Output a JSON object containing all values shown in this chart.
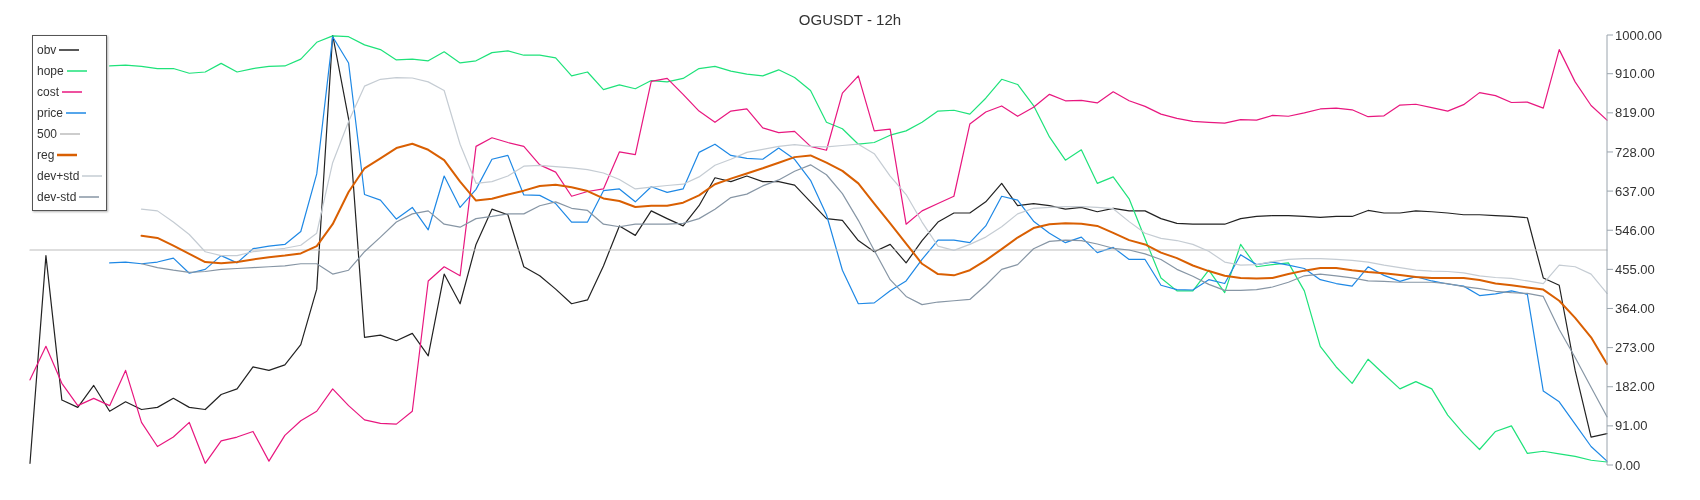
{
  "chart_data": {
    "type": "line",
    "title": "OGUSDT - 12h",
    "categories": [
      null,
      null,
      null,
      null,
      null,
      null,
      null,
      null,
      null,
      null,
      null,
      null,
      null,
      null,
      null,
      null,
      null,
      null,
      null,
      null,
      null,
      null,
      null,
      null,
      null,
      null,
      null,
      null,
      null,
      null,
      null,
      null,
      null,
      null,
      null,
      null,
      null,
      null,
      null,
      null,
      null,
      null,
      null,
      null,
      null,
      null,
      null,
      null,
      null,
      null,
      null,
      null,
      null,
      null,
      null,
      null,
      null,
      null,
      null,
      null,
      null,
      null,
      null,
      null,
      null,
      null,
      null,
      null,
      null,
      null,
      null,
      null,
      null,
      null,
      null,
      null,
      null,
      null,
      null,
      null,
      null,
      null,
      null,
      null,
      null,
      null,
      null,
      null,
      null,
      null,
      null,
      null,
      null,
      null,
      null,
      null,
      null,
      null,
      null,
      null
    ],
    "series": [
      {
        "name": "obv",
        "color": "#222222",
        "values": [
          4,
          487,
          151,
          134,
          185,
          125,
          147,
          129,
          134,
          155,
          134,
          129,
          164,
          177,
          228,
          220,
          233,
          280,
          409,
          1000,
          805,
          297,
          302,
          289,
          306,
          254,
          444,
          375,
          513,
          595,
          582,
          461,
          440,
          409,
          375,
          384,
          463,
          556,
          534,
          591,
          573,
          556,
          603,
          668,
          659,
          672,
          659,
          659,
          651,
          612,
          573,
          569,
          522,
          496,
          513,
          470,
          522,
          565,
          586,
          586,
          612,
          655,
          603,
          608,
          603,
          595,
          599,
          589,
          597,
          591,
          591,
          573,
          562,
          560,
          560,
          560,
          573,
          578,
          580,
          580,
          578,
          576,
          578,
          578,
          592,
          586,
          586,
          591,
          589,
          586,
          582,
          582,
          580,
          578,
          575,
          435,
          418,
          220,
          65,
          73
        ]
      },
      {
        "name": "hope",
        "color": "#1ee27a",
        "values": [
          null,
          null,
          null,
          null,
          null,
          928,
          930,
          927,
          922,
          922,
          911,
          914,
          934,
          914,
          922,
          927,
          928,
          944,
          983,
          998,
          996,
          977,
          966,
          942,
          944,
          940,
          961,
          935,
          940,
          959,
          963,
          953,
          953,
          947,
          905,
          914,
          873,
          884,
          875,
          894,
          891,
          899,
          922,
          927,
          916,
          909,
          905,
          919,
          901,
          871,
          797,
          782,
          746,
          750,
          767,
          777,
          797,
          823,
          825,
          816,
          853,
          897,
          885,
          836,
          763,
          709,
          733,
          655,
          670,
          619,
          526,
          435,
          405,
          405,
          453,
          401,
          513,
          461,
          466,
          470,
          405,
          276,
          228,
          190,
          246,
          211,
          177,
          194,
          177,
          116,
          73,
          36,
          78,
          91,
          27,
          32,
          26,
          20,
          11,
          7
        ]
      },
      {
        "name": "cost",
        "color": "#e8177f",
        "values": [
          198,
          276,
          190,
          138,
          155,
          138,
          220,
          99,
          43,
          65,
          99,
          4,
          56,
          65,
          78,
          9,
          69,
          103,
          125,
          177,
          138,
          105,
          97,
          95,
          125,
          428,
          461,
          440,
          741,
          761,
          750,
          741,
          698,
          681,
          625,
          636,
          642,
          728,
          722,
          892,
          899,
          862,
          823,
          797,
          823,
          828,
          784,
          773,
          776,
          741,
          732,
          865,
          905,
          777,
          781,
          560,
          591,
          608,
          625,
          793,
          821,
          835,
          811,
          832,
          862,
          847,
          848,
          842,
          868,
          847,
          834,
          816,
          806,
          799,
          797,
          795,
          803,
          802,
          813,
          811,
          819,
          828,
          830,
          826,
          810,
          812,
          837,
          839,
          831,
          823,
          838,
          866,
          859,
          843,
          844,
          830,
          966,
          891,
          836,
          802
        ]
      },
      {
        "name": "price",
        "color": "#1e88e5",
        "values": [
          null,
          null,
          null,
          null,
          null,
          470,
          472,
          468,
          472,
          481,
          446,
          455,
          487,
          470,
          503,
          509,
          513,
          543,
          677,
          996,
          935,
          629,
          616,
          572,
          599,
          547,
          672,
          599,
          641,
          711,
          720,
          628,
          627,
          608,
          565,
          565,
          638,
          642,
          612,
          647,
          634,
          642,
          727,
          746,
          720,
          713,
          711,
          737,
          711,
          662,
          582,
          453,
          375,
          377,
          405,
          428,
          478,
          523,
          523,
          517,
          556,
          625,
          616,
          567,
          539,
          517,
          530,
          494,
          506,
          478,
          478,
          418,
          408,
          407,
          431,
          422,
          489,
          466,
          472,
          465,
          457,
          431,
          422,
          416,
          461,
          441,
          427,
          438,
          428,
          421,
          416,
          394,
          398,
          405,
          397,
          172,
          147,
          95,
          43,
          9
        ]
      },
      {
        "name": "500",
        "color": "#bdbdbd",
        "values": [
          500,
          500,
          500,
          500,
          500,
          500,
          500,
          500,
          500,
          500,
          500,
          500,
          500,
          500,
          500,
          500,
          500,
          500,
          500,
          500,
          500,
          500,
          500,
          500,
          500,
          500,
          500,
          500,
          500,
          500,
          500,
          500,
          500,
          500,
          500,
          500,
          500,
          500,
          500,
          500,
          500,
          500,
          500,
          500,
          500,
          500,
          500,
          500,
          500,
          500,
          500,
          500,
          500,
          500,
          500,
          500,
          500,
          500,
          500,
          500,
          500,
          500,
          500,
          500,
          500,
          500,
          500,
          500,
          500,
          500,
          500,
          500,
          500,
          500,
          500,
          500,
          500,
          500,
          500,
          500,
          500,
          500,
          500,
          500,
          500,
          500,
          500,
          500,
          500,
          500,
          500,
          500,
          500,
          500,
          500,
          500,
          500,
          500,
          500,
          500
        ]
      },
      {
        "name": "reg",
        "color": "#d95f02",
        "values": [
          null,
          null,
          null,
          null,
          null,
          null,
          null,
          533,
          528,
          510,
          491,
          472,
          469,
          472,
          478,
          483,
          487,
          492,
          509,
          560,
          635,
          690,
          713,
          737,
          747,
          733,
          709,
          659,
          615,
          619,
          629,
          638,
          649,
          652,
          646,
          637,
          620,
          614,
          600,
          603,
          603,
          610,
          627,
          653,
          666,
          678,
          690,
          703,
          716,
          720,
          703,
          684,
          655,
          608,
          562,
          515,
          468,
          444,
          441,
          453,
          476,
          502,
          529,
          551,
          560,
          562,
          561,
          556,
          540,
          523,
          513,
          494,
          481,
          464,
          451,
          440,
          435,
          434,
          435,
          444,
          452,
          458,
          458,
          453,
          449,
          446,
          442,
          437,
          435,
          435,
          435,
          430,
          422,
          418,
          413,
          408,
          382,
          342,
          297,
          235
        ]
      },
      {
        "name": "dev+std",
        "color": "#c5ccd3",
        "values": [
          null,
          null,
          null,
          null,
          null,
          null,
          null,
          595,
          591,
          565,
          536,
          496,
          487,
          487,
          496,
          500,
          504,
          511,
          539,
          703,
          799,
          881,
          897,
          901,
          900,
          891,
          871,
          746,
          655,
          659,
          672,
          695,
          697,
          694,
          691,
          687,
          679,
          664,
          642,
          646,
          650,
          653,
          670,
          697,
          711,
          727,
          734,
          741,
          745,
          741,
          740,
          743,
          746,
          724,
          672,
          629,
          565,
          509,
          499,
          513,
          530,
          554,
          584,
          597,
          599,
          601,
          601,
          599,
          596,
          566,
          539,
          527,
          522,
          513,
          497,
          472,
          465,
          466,
          473,
          478,
          480,
          480,
          478,
          476,
          472,
          465,
          459,
          453,
          451,
          450,
          447,
          440,
          436,
          434,
          428,
          422,
          465,
          461,
          444,
          399
        ]
      },
      {
        "name": "dev-std",
        "color": "#8796a5",
        "values": [
          null,
          null,
          null,
          null,
          null,
          null,
          null,
          468,
          459,
          453,
          448,
          450,
          455,
          457,
          459,
          461,
          463,
          468,
          468,
          444,
          453,
          496,
          530,
          565,
          584,
          591,
          560,
          553,
          573,
          578,
          584,
          584,
          603,
          612,
          597,
          592,
          560,
          554,
          560,
          560,
          560,
          562,
          573,
          595,
          622,
          630,
          649,
          663,
          683,
          698,
          675,
          631,
          569,
          499,
          431,
          392,
          373,
          379,
          382,
          385,
          418,
          455,
          466,
          503,
          520,
          523,
          522,
          514,
          504,
          500,
          491,
          478,
          455,
          439,
          420,
          406,
          406,
          408,
          414,
          425,
          440,
          444,
          440,
          435,
          428,
          427,
          425,
          425,
          425,
          422,
          415,
          410,
          404,
          401,
          399,
          392,
          315,
          250,
          181,
          112
        ]
      }
    ],
    "ylim": [
      0,
      1000
    ],
    "yticks": [
      {
        "value": 0,
        "label": "0.00"
      },
      {
        "value": 91,
        "label": "91.00"
      },
      {
        "value": 182,
        "label": "182.00"
      },
      {
        "value": 273,
        "label": "273.00"
      },
      {
        "value": 364,
        "label": "364.00"
      },
      {
        "value": 455,
        "label": "455.00"
      },
      {
        "value": 546,
        "label": "546.00"
      },
      {
        "value": 637,
        "label": "637.00"
      },
      {
        "value": 728,
        "label": "728.00"
      },
      {
        "value": 819,
        "label": "819.00"
      },
      {
        "value": 910,
        "label": "910.00"
      },
      {
        "value": 1000,
        "label": "1000.00"
      }
    ],
    "tick_labels": "y",
    "grid": false,
    "legend": "top left",
    "marker": "none",
    "line_style": "solid"
  }
}
